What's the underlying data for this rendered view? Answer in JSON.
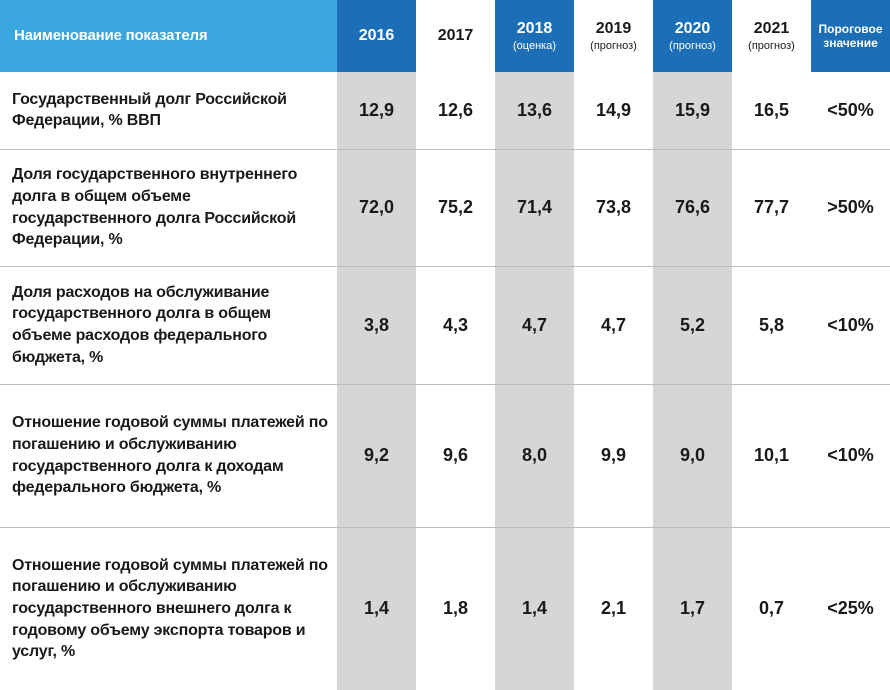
{
  "header": {
    "name_label": "Наименование показателя",
    "years": [
      {
        "year": "2016",
        "sub": ""
      },
      {
        "year": "2017",
        "sub": ""
      },
      {
        "year": "2018",
        "sub": "(оценка)"
      },
      {
        "year": "2019",
        "sub": "(прогноз)"
      },
      {
        "year": "2020",
        "sub": "(прогноз)"
      },
      {
        "year": "2021",
        "sub": "(прогноз)"
      }
    ],
    "threshold_line1": "Пороговое",
    "threshold_line2": "значение"
  },
  "chart_data": {
    "type": "table",
    "columns": [
      "Наименование показателя",
      "2016",
      "2017",
      "2018 (оценка)",
      "2019 (прогноз)",
      "2020 (прогноз)",
      "2021 (прогноз)",
      "Пороговое значение"
    ],
    "rows": [
      {
        "label": "Государственный долг Российской Федерации, % ВВП",
        "values": [
          "12,9",
          "12,6",
          "13,6",
          "14,9",
          "15,9",
          "16,5"
        ],
        "threshold": "<50%"
      },
      {
        "label": "Доля государственного внутреннего долга в общем объеме государственного долга Российской Федерации, %",
        "values": [
          "72,0",
          "75,2",
          "71,4",
          "73,8",
          "76,6",
          "77,7"
        ],
        "threshold": ">50%"
      },
      {
        "label": "Доля расходов на обслуживание государственного долга в общем объеме расходов федерального бюджета, %",
        "values": [
          "3,8",
          "4,3",
          "4,7",
          "4,7",
          "5,2",
          "5,8"
        ],
        "threshold": "<10%"
      },
      {
        "label": "Отношение годовой суммы платежей по погашению и обслуживанию государственного долга к доходам федерального бюджета, %",
        "values": [
          "9,2",
          "9,6",
          "8,0",
          "9,9",
          "9,0",
          "10,1"
        ],
        "threshold": "<10%"
      },
      {
        "label": "Отношение годовой суммы платежей по погашению и обслуживанию государственного внешнего долга к годовому объему экспорта товаров и услуг, %",
        "values": [
          "1,4",
          "1,8",
          "1,4",
          "2,1",
          "1,7",
          "0,7"
        ],
        "threshold": "<25%"
      }
    ]
  },
  "colors": {
    "header_name_bg": "#39a6df",
    "header_dark_bg": "#1c6fb6",
    "shaded_column_bg": "#d6d6d6"
  }
}
